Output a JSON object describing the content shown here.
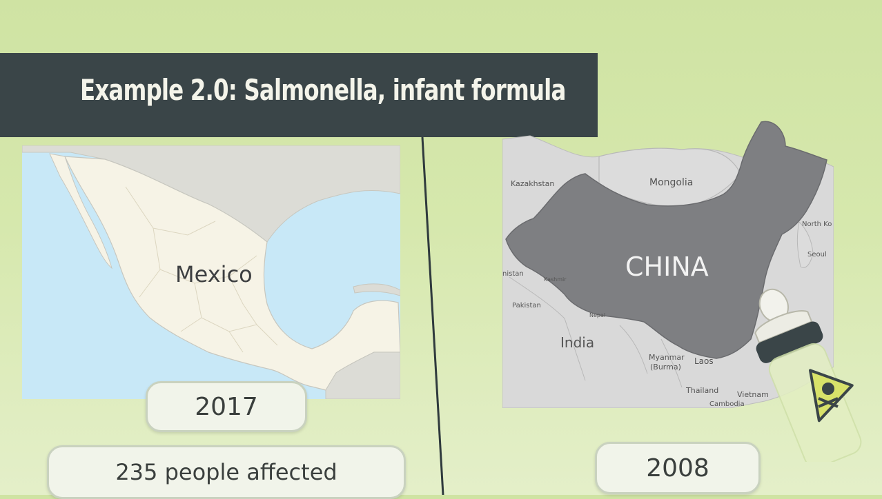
{
  "title": "Example 2.0: Salmonella, infant formula",
  "left_case": {
    "map_label": "Mexico",
    "year": "2017",
    "affected": "235 people affected"
  },
  "right_case": {
    "map_label": "CHINA",
    "year": "2008",
    "neighbors": {
      "kazakhstan": "Kazakhstan",
      "mongolia": "Mongolia",
      "north_korea": "North Ko",
      "seoul": "Seoul",
      "istan": "nistan",
      "kashmir": "Kashmir",
      "pakistan": "Pakistan",
      "nepal": "Nepal",
      "india": "India",
      "myanmar": "Myanmar",
      "burma": "(Burma)",
      "laos": "Laos",
      "thailand": "Thailand",
      "vietnam": "Vietnam",
      "cambodia": "Cambodia"
    }
  },
  "colors": {
    "banner": "#3a4548",
    "water": "#c8e8f7",
    "mexico_land": "#f6f3e6",
    "china_land": "#7e7f82",
    "neighbor_land": "#d9d9d9",
    "hazard_yellow": "#d8e26a"
  },
  "icons": {
    "bottle": "baby-bottle-icon",
    "hazard": "skull-crossbones-icon"
  }
}
